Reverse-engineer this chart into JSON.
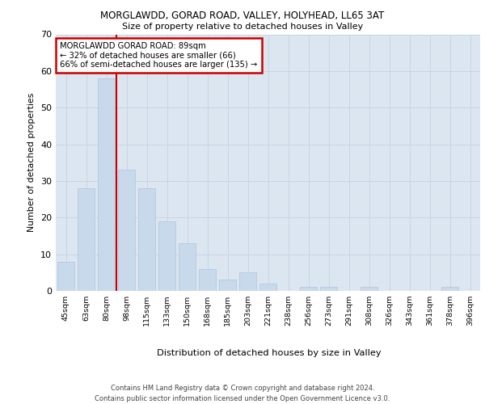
{
  "title1": "MORGLAWDD, GORAD ROAD, VALLEY, HOLYHEAD, LL65 3AT",
  "title2": "Size of property relative to detached houses in Valley",
  "xlabel": "Distribution of detached houses by size in Valley",
  "ylabel": "Number of detached properties",
  "categories": [
    "45sqm",
    "63sqm",
    "80sqm",
    "98sqm",
    "115sqm",
    "133sqm",
    "150sqm",
    "168sqm",
    "185sqm",
    "203sqm",
    "221sqm",
    "238sqm",
    "256sqm",
    "273sqm",
    "291sqm",
    "308sqm",
    "326sqm",
    "343sqm",
    "361sqm",
    "378sqm",
    "396sqm"
  ],
  "values": [
    8,
    28,
    58,
    33,
    28,
    19,
    13,
    6,
    3,
    5,
    2,
    0,
    1,
    1,
    0,
    1,
    0,
    0,
    0,
    1,
    0
  ],
  "bar_color": "#c9d9ec",
  "bar_edge_color": "#b0c4de",
  "vline_x": 2.5,
  "vline_color": "#cc0000",
  "annotation_title": "MORGLAWDD GORAD ROAD: 89sqm",
  "annotation_line1": "← 32% of detached houses are smaller (66)",
  "annotation_line2": "66% of semi-detached houses are larger (135) →",
  "annotation_box_color": "#ffffff",
  "annotation_border_color": "#cc0000",
  "ylim": [
    0,
    70
  ],
  "yticks": [
    0,
    10,
    20,
    30,
    40,
    50,
    60,
    70
  ],
  "grid_color": "#c8d4e4",
  "bg_color": "#dce6f0",
  "footer": "Contains HM Land Registry data © Crown copyright and database right 2024.\nContains public sector information licensed under the Open Government Licence v3.0."
}
